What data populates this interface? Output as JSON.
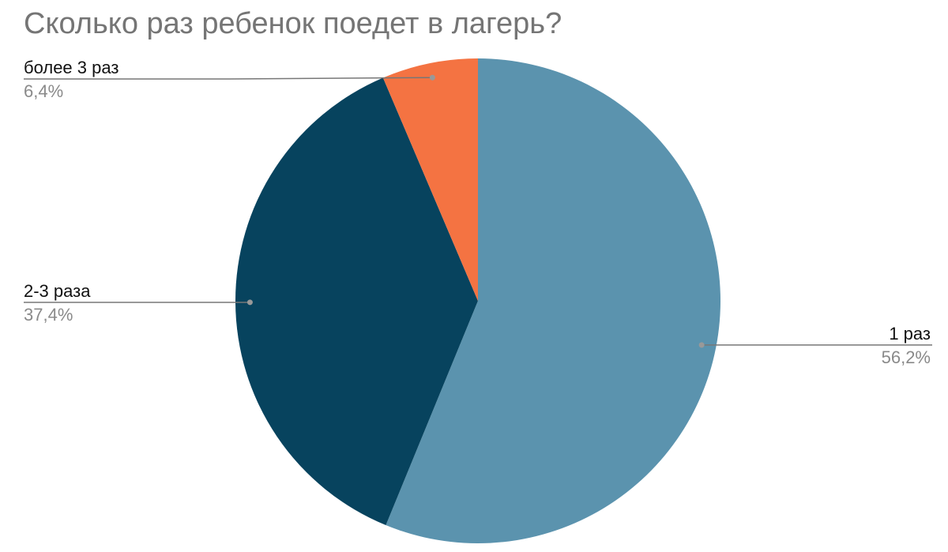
{
  "chart_data": {
    "type": "pie",
    "title": "Сколько раз ребенок поедет в лагерь?",
    "categories": [
      "1 раз",
      "2-3 раза",
      "более 3 раз"
    ],
    "values": [
      56.2,
      37.4,
      6.4
    ],
    "value_labels": [
      "56,2%",
      "37,4%",
      "6,4%"
    ],
    "colors": [
      "#5b93ae",
      "#07435e",
      "#f47342"
    ]
  }
}
